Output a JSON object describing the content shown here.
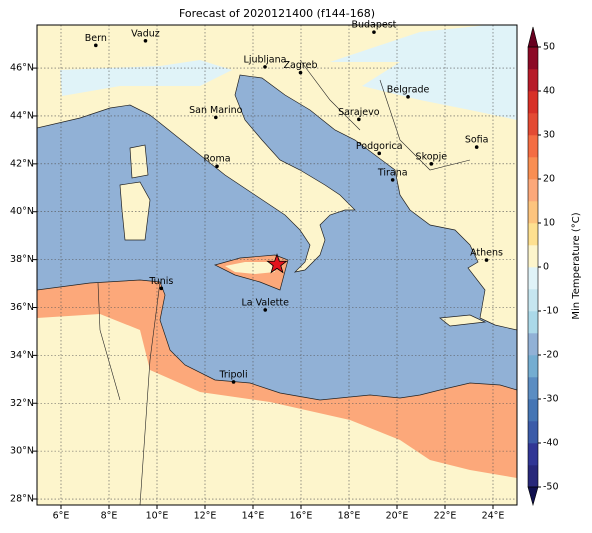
{
  "title": "Forecast of 2020121400 (f144-168)",
  "map": {
    "xlim": [
      5,
      25
    ],
    "ylim": [
      27.75,
      47.8
    ],
    "xticks": [
      {
        "value": 6,
        "label": "6°E"
      },
      {
        "value": 8,
        "label": "8°E"
      },
      {
        "value": 10,
        "label": "10°E"
      },
      {
        "value": 12,
        "label": "12°E"
      },
      {
        "value": 14,
        "label": "14°E"
      },
      {
        "value": 16,
        "label": "16°E"
      },
      {
        "value": 18,
        "label": "18°E"
      },
      {
        "value": 20,
        "label": "20°E"
      },
      {
        "value": 22,
        "label": "22°E"
      },
      {
        "value": 24,
        "label": "24°E"
      }
    ],
    "yticks": [
      {
        "value": 28,
        "label": "28°N"
      },
      {
        "value": 30,
        "label": "30°N"
      },
      {
        "value": 32,
        "label": "32°N"
      },
      {
        "value": 34,
        "label": "34°N"
      },
      {
        "value": 36,
        "label": "36°N"
      },
      {
        "value": 38,
        "label": "38°N"
      },
      {
        "value": 40,
        "label": "40°N"
      },
      {
        "value": 42,
        "label": "42°N"
      },
      {
        "value": 44,
        "label": "44°N"
      },
      {
        "value": 46,
        "label": "46°N"
      }
    ],
    "cities": [
      {
        "name": "Bern",
        "lon": 7.45,
        "lat": 46.95
      },
      {
        "name": "Vaduz",
        "lon": 9.52,
        "lat": 47.14
      },
      {
        "name": "Budapest",
        "lon": 19.04,
        "lat": 47.5
      },
      {
        "name": "Ljubljana",
        "lon": 14.5,
        "lat": 46.05
      },
      {
        "name": "Zagreb",
        "lon": 15.98,
        "lat": 45.81
      },
      {
        "name": "Belgrade",
        "lon": 20.46,
        "lat": 44.8
      },
      {
        "name": "San Marino",
        "lon": 12.45,
        "lat": 43.94
      },
      {
        "name": "Sarajevo",
        "lon": 18.41,
        "lat": 43.86
      },
      {
        "name": "Sofia",
        "lon": 23.32,
        "lat": 42.7
      },
      {
        "name": "Roma",
        "lon": 12.5,
        "lat": 41.9
      },
      {
        "name": "Podgorica",
        "lon": 19.26,
        "lat": 42.44
      },
      {
        "name": "Skopje",
        "lon": 21.43,
        "lat": 42.0
      },
      {
        "name": "Tirana",
        "lon": 19.82,
        "lat": 41.33
      },
      {
        "name": "Athens",
        "lon": 23.73,
        "lat": 37.98
      },
      {
        "name": "Tunis",
        "lon": 10.18,
        "lat": 36.8
      },
      {
        "name": "La Valette",
        "lon": 14.51,
        "lat": 35.9
      },
      {
        "name": "Tripoli",
        "lon": 13.19,
        "lat": 32.89
      }
    ],
    "marker": {
      "lon": 15.0,
      "lat": 37.8,
      "color": "#e3141c"
    }
  },
  "colorbar": {
    "label": "Min Temperature (°C)",
    "lim": [
      -50,
      50
    ],
    "ticks": [
      -50,
      -40,
      -30,
      -20,
      -10,
      0,
      10,
      20,
      30,
      40,
      50
    ],
    "colors": [
      "#28287a",
      "#313695",
      "#3b5ba8",
      "#4575b4",
      "#5b8dc2",
      "#74add1",
      "#91b1d6",
      "#abd9e9",
      "#c6e6f0",
      "#e0f3f8",
      "#fdf5cc",
      "#fee090",
      "#fdc47e",
      "#fca87a",
      "#f98e52",
      "#f46d43",
      "#e34a33",
      "#d73027",
      "#b71c2a",
      "#8c0a26"
    ],
    "under": "#10104f",
    "over": "#67001f"
  }
}
